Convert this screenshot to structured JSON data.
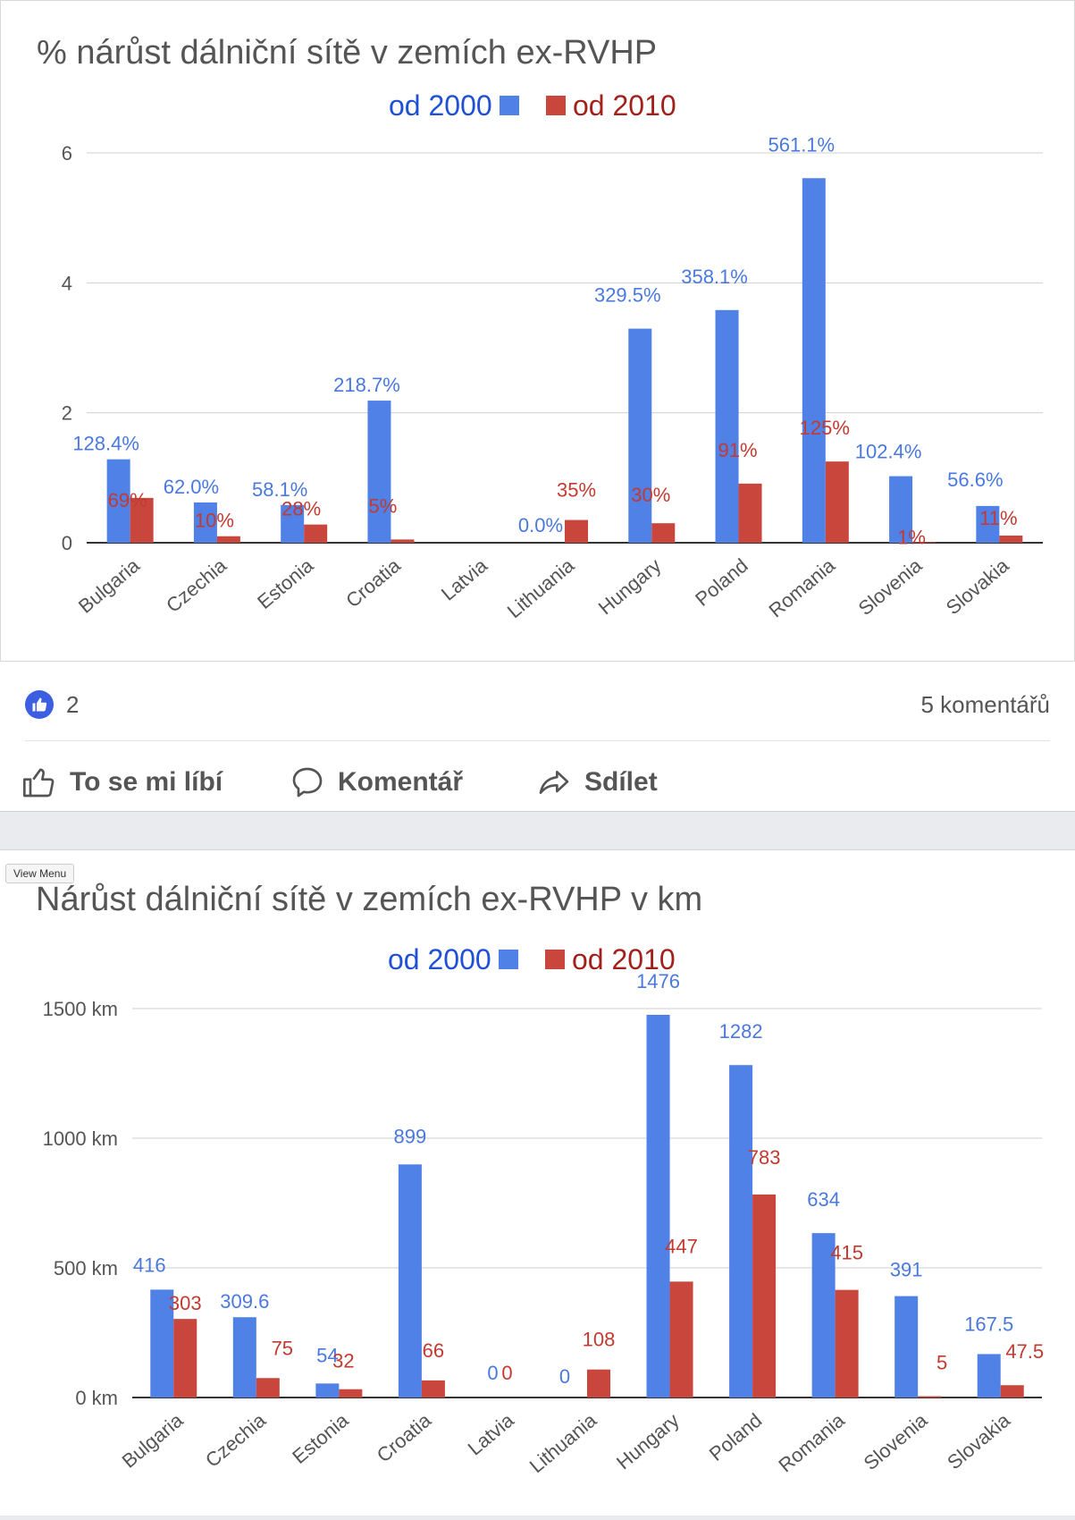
{
  "chart_data": [
    {
      "type": "bar",
      "title": "% nárůst dálniční sítě v zemích ex-RVHP",
      "categories": [
        "Bulgaria",
        "Czechia",
        "Estonia",
        "Croatia",
        "Latvia",
        "Lithuania",
        "Hungary",
        "Poland",
        "Romania",
        "Slovenia",
        "Slovakia"
      ],
      "series": [
        {
          "name": "od 2000",
          "color": "#4f81e6",
          "values": [
            1.284,
            0.62,
            0.581,
            2.187,
            0,
            0,
            3.295,
            3.581,
            5.611,
            1.024,
            0.566
          ],
          "labels": [
            "128.4%",
            "62.0%",
            "58.1%",
            "218.7%",
            "",
            "0.0%",
            "329.5%",
            "358.1%",
            "561.1%",
            "102.4%",
            "56.6%"
          ]
        },
        {
          "name": "od 2010",
          "color": "#c9463d",
          "values": [
            0.69,
            0.1,
            0.28,
            0.05,
            0,
            0.35,
            0.3,
            0.91,
            1.25,
            0.01,
            0.11
          ],
          "labels": [
            "69%",
            "10%",
            "28%",
            "5%",
            "",
            "35%",
            "30%",
            "91%",
            "125%",
            "1%",
            "11%"
          ]
        }
      ],
      "ylim": [
        0,
        6
      ],
      "yticks": [
        0,
        2,
        4,
        6
      ],
      "ytick_labels": [
        "0",
        "2",
        "4",
        "6"
      ],
      "legend": "top-center",
      "grid": true
    },
    {
      "type": "bar",
      "title": "Nárůst dálniční sítě v zemích ex-RVHP v km",
      "categories": [
        "Bulgaria",
        "Czechia",
        "Estonia",
        "Croatia",
        "Latvia",
        "Lithuania",
        "Hungary",
        "Poland",
        "Romania",
        "Slovenia",
        "Slovakia"
      ],
      "series": [
        {
          "name": "od 2000",
          "color": "#4f81e6",
          "values": [
            416,
            309.6,
            54,
            899,
            0,
            0,
            1476,
            1282,
            634,
            391,
            167.5
          ],
          "labels": [
            "416",
            "309.6",
            "54",
            "899",
            "0",
            "0",
            "1476",
            "1282",
            "634",
            "391",
            "167.5"
          ]
        },
        {
          "name": "od 2010",
          "color": "#c9463d",
          "values": [
            303,
            75,
            32,
            66,
            0,
            108,
            447,
            783,
            415,
            5,
            47.5
          ],
          "labels": [
            "303",
            "75",
            "32",
            "66",
            "0",
            "108",
            "447",
            "783",
            "415",
            "5",
            "47.5"
          ]
        }
      ],
      "ylim": [
        0,
        1500
      ],
      "yticks": [
        0,
        500,
        1000,
        1500
      ],
      "ytick_labels": [
        "0 km",
        "500 km",
        "1000 km",
        "1500 km"
      ],
      "legend": "top-center",
      "grid": true
    }
  ],
  "post": {
    "like_count": "2",
    "comments_count": "5 komentářů",
    "actions": {
      "like": "To se mi líbí",
      "comment": "Komentář",
      "share": "Sdílet"
    }
  },
  "view_menu_label": "View Menu",
  "icons": {
    "like": "thumbs-up-icon",
    "comment": "speech-bubble-icon",
    "share": "share-arrow-icon"
  }
}
